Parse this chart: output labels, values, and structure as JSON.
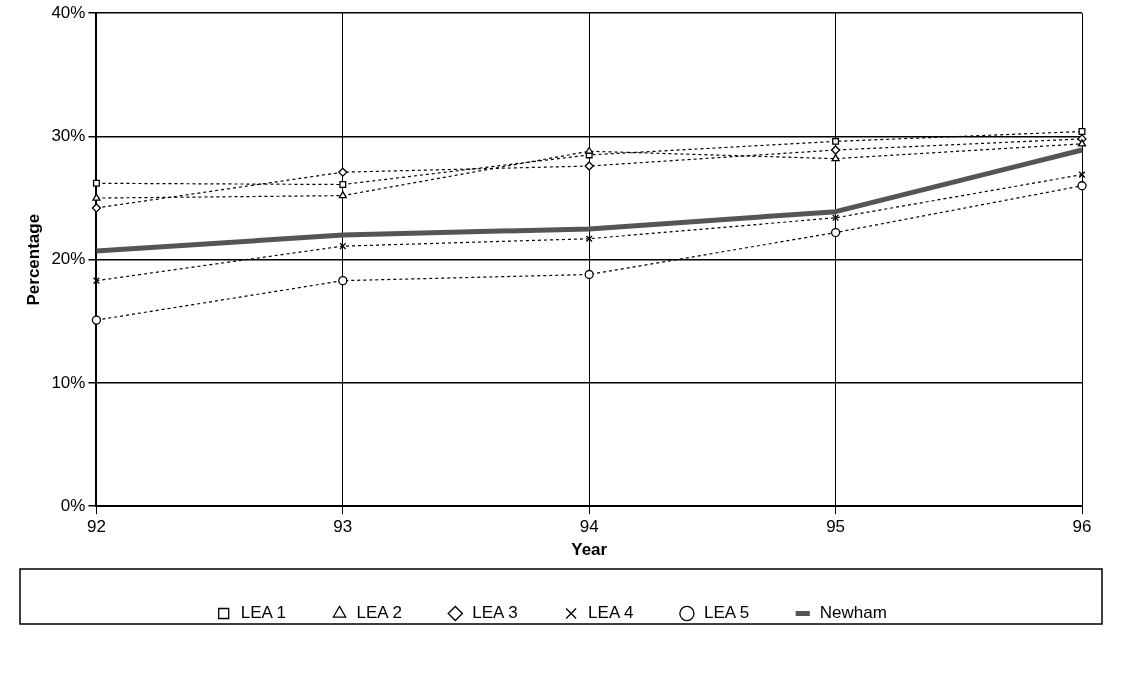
{
  "chart_data": {
    "type": "line",
    "xlabel": "Year",
    "ylabel": "Percentage",
    "categories": [
      "92",
      "93",
      "94",
      "95",
      "96"
    ],
    "ylim": [
      0,
      40
    ],
    "yticks": [
      {
        "value": 0,
        "label": "0%"
      },
      {
        "value": 10,
        "label": "10%"
      },
      {
        "value": 20,
        "label": "20%"
      },
      {
        "value": 30,
        "label": "30%"
      },
      {
        "value": 40,
        "label": "40%"
      }
    ],
    "grid": true,
    "legend": "bottom",
    "series": [
      {
        "name": "LEA 1",
        "color": "#000000",
        "marker": "square",
        "line_style": "dotted",
        "values": [
          26.2,
          26.1,
          28.5,
          29.6,
          30.4
        ]
      },
      {
        "name": "LEA 2",
        "color": "#000000",
        "marker": "triangle",
        "line_style": "dotted",
        "values": [
          25.0,
          25.2,
          28.8,
          28.2,
          29.4
        ]
      },
      {
        "name": "LEA 3",
        "color": "#000000",
        "marker": "diamond",
        "line_style": "dotted",
        "values": [
          24.2,
          27.1,
          27.6,
          28.9,
          29.8
        ]
      },
      {
        "name": "LEA 4",
        "color": "#000000",
        "marker": "cross",
        "line_style": "dotted",
        "values": [
          18.3,
          21.1,
          21.7,
          23.4,
          26.9
        ]
      },
      {
        "name": "LEA 5",
        "color": "#000000",
        "marker": "circle",
        "line_style": "dotted",
        "values": [
          15.1,
          18.3,
          18.8,
          22.2,
          26.0
        ]
      },
      {
        "name": "Newham",
        "color": "#555555",
        "marker": "none",
        "line_style": "solid",
        "values": [
          20.7,
          22.0,
          22.5,
          23.9,
          28.9
        ]
      }
    ]
  }
}
